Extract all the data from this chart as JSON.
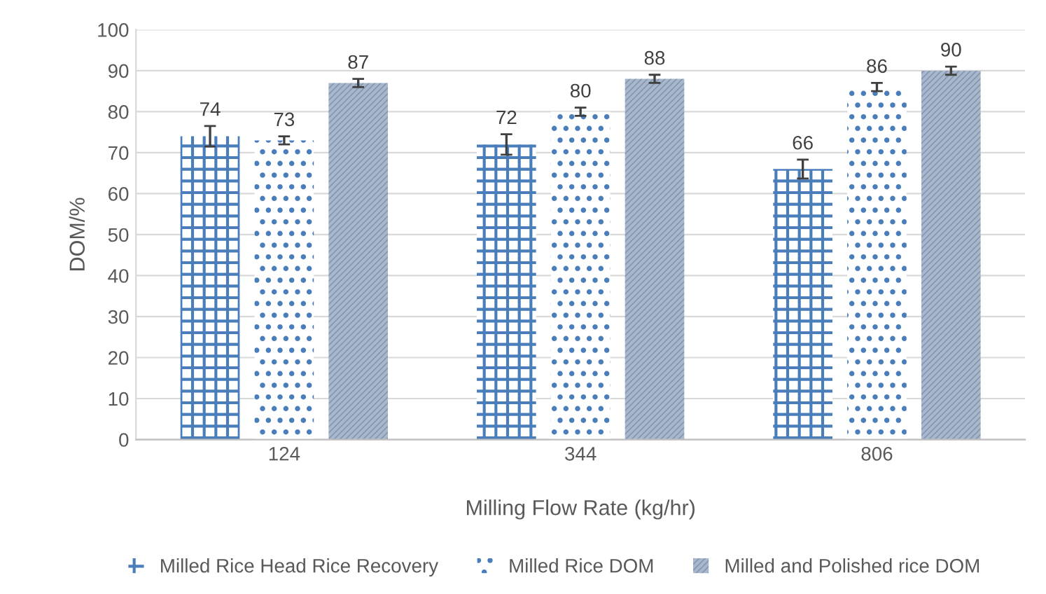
{
  "chart_data": {
    "type": "bar",
    "xlabel": "Milling Flow Rate (kg/hr)",
    "ylabel": "DOM/%",
    "categories": [
      "124",
      "344",
      "806"
    ],
    "series": [
      {
        "name": "Milled Rice Head Rice Recovery",
        "color": "#4a7ebb",
        "values": [
          74,
          72,
          66
        ],
        "errors": [
          2.5,
          2.5,
          2.3
        ]
      },
      {
        "name": "Milled Rice DOM",
        "color": "#4a7ebb",
        "values": [
          73,
          80,
          86
        ],
        "errors": [
          1,
          1,
          1
        ]
      },
      {
        "name": "Milled and Polished rice DOM",
        "color": "#8497b0",
        "values": [
          87,
          88,
          90
        ],
        "errors": [
          1,
          1,
          1
        ]
      }
    ],
    "ylim": [
      0,
      100
    ],
    "yticks": [
      0,
      10,
      20,
      30,
      40,
      50,
      60,
      70,
      80,
      90,
      100
    ],
    "grid": "y",
    "legend": "bottom",
    "data_labels": true
  }
}
